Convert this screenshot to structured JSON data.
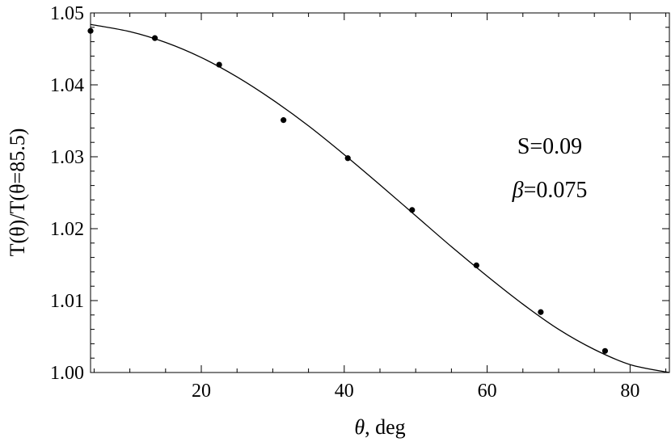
{
  "chart_data": {
    "type": "scatter",
    "xlabel_symbol": "θ",
    "xlabel_rest": ", deg",
    "ylabel": "T(θ)/T(θ=85.5)",
    "xlim": [
      4.5,
      85.5
    ],
    "ylim": [
      1.0,
      1.05
    ],
    "x_ticks": [
      20,
      40,
      60,
      80
    ],
    "x_tick_labels": [
      "20",
      "40",
      "60",
      "80"
    ],
    "y_ticks": [
      1.0,
      1.01,
      1.02,
      1.03,
      1.04,
      1.05
    ],
    "y_tick_labels": [
      "1.00",
      "1.01",
      "1.02",
      "1.03",
      "1.04",
      "1.05"
    ],
    "grid": false,
    "series": [
      {
        "kind": "points",
        "x": [
          4.5,
          13.5,
          22.5,
          31.5,
          40.5,
          49.5,
          58.5,
          67.5,
          76.5
        ],
        "y": [
          1.0475,
          1.0465,
          1.0428,
          1.0351,
          1.0298,
          1.0226,
          1.0149,
          1.0084,
          1.003
        ]
      },
      {
        "kind": "curve",
        "x": [
          4.5,
          10,
          15,
          20,
          25,
          30,
          35,
          40,
          45,
          50,
          55,
          60,
          65,
          70,
          75,
          80,
          85.5
        ],
        "y": [
          1.0484,
          1.0474,
          1.0459,
          1.0438,
          1.0411,
          1.0379,
          1.0343,
          1.0303,
          1.0261,
          1.0218,
          1.0175,
          1.0134,
          1.0095,
          1.006,
          1.0032,
          1.0011,
          1.0
        ]
      }
    ],
    "annotations": [
      {
        "text": "S=0.09"
      },
      {
        "symbol": "β",
        "text": "=0.075"
      }
    ]
  }
}
